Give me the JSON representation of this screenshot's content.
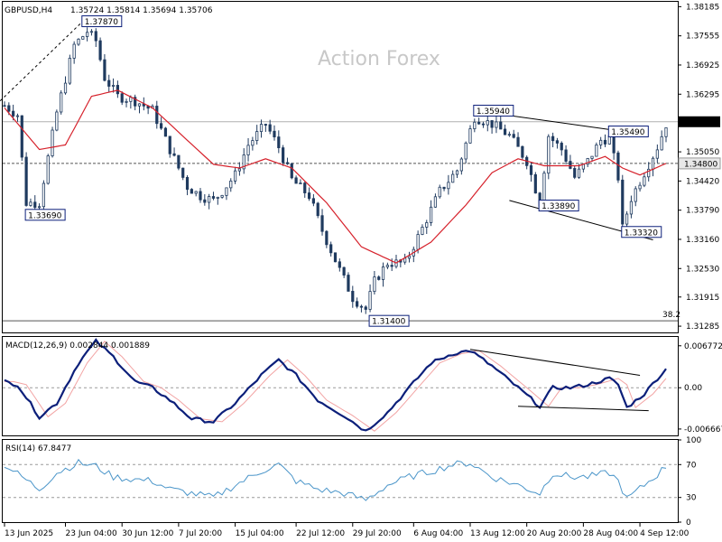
{
  "header": {
    "symbol": "GBPUSD,H4",
    "ohlc": "1.35724 1.35814 1.35694 1.35706"
  },
  "watermark": "Action Forex",
  "colors": {
    "candle": "#1f3a5f",
    "ma": "#d6212b",
    "macd": "#0c1f7a",
    "signal": "#f2a3a3",
    "rsi": "#4a95c9",
    "trend": "#000000",
    "grid": "#9a9a9a",
    "price_box_bg": "#ffffff",
    "price_box_border": "#0c1f7a"
  },
  "chart_data": [
    {
      "type": "candlestick",
      "panel": "price",
      "ylim": [
        1.3115,
        1.3829
      ],
      "y_ticks": [
        "1.38185",
        "1.37555",
        "1.36925",
        "1.36295",
        "1.35665",
        "1.35050",
        "1.34420",
        "1.33790",
        "1.33160",
        "1.32530",
        "1.31915",
        "1.31285"
      ],
      "current_price_label": "1.35706",
      "level_line_label": "1.34800",
      "fib_label": "38.2",
      "annotations": [
        {
          "text": "1.37870",
          "x": 18,
          "y": 1.3787
        },
        {
          "text": "1.33690",
          "x": 5,
          "y": 1.3369
        },
        {
          "text": "1.35940",
          "x": 108,
          "y": 1.3594
        },
        {
          "text": "1.35490",
          "x": 139,
          "y": 1.3549
        },
        {
          "text": "1.33890",
          "x": 123,
          "y": 1.3389
        },
        {
          "text": "1.33320",
          "x": 142,
          "y": 1.3332
        },
        {
          "text": "1.31400",
          "x": 84,
          "y": 1.314
        }
      ],
      "anchors": [
        [
          0,
          1.3605
        ],
        [
          3,
          1.3585
        ],
        [
          5,
          1.3395
        ],
        [
          8,
          1.3395
        ],
        [
          12,
          1.359
        ],
        [
          16,
          1.3735
        ],
        [
          19,
          1.3765
        ],
        [
          21,
          1.3745
        ],
        [
          23,
          1.3665
        ],
        [
          26,
          1.3625
        ],
        [
          30,
          1.3615
        ],
        [
          34,
          1.3595
        ],
        [
          38,
          1.351
        ],
        [
          42,
          1.343
        ],
        [
          45,
          1.341
        ],
        [
          48,
          1.34
        ],
        [
          50,
          1.342
        ],
        [
          53,
          1.3455
        ],
        [
          56,
          1.352
        ],
        [
          60,
          1.3565
        ],
        [
          63,
          1.3515
        ],
        [
          66,
          1.3445
        ],
        [
          70,
          1.341
        ],
        [
          73,
          1.3335
        ],
        [
          77,
          1.325
        ],
        [
          80,
          1.319
        ],
        [
          83,
          1.3165
        ],
        [
          85,
          1.3225
        ],
        [
          88,
          1.3265
        ],
        [
          92,
          1.3265
        ],
        [
          96,
          1.334
        ],
        [
          100,
          1.342
        ],
        [
          104,
          1.3465
        ],
        [
          108,
          1.358
        ],
        [
          112,
          1.3565
        ],
        [
          116,
          1.354
        ],
        [
          120,
          1.3485
        ],
        [
          123,
          1.3395
        ],
        [
          125,
          1.354
        ],
        [
          128,
          1.351
        ],
        [
          131,
          1.345
        ],
        [
          134,
          1.3485
        ],
        [
          137,
          1.353
        ],
        [
          139,
          1.3535
        ],
        [
          141,
          1.345
        ],
        [
          142,
          1.334
        ],
        [
          144,
          1.3405
        ],
        [
          147,
          1.346
        ],
        [
          150,
          1.3515
        ],
        [
          152,
          1.3565
        ]
      ],
      "ma_anchors": [
        [
          0,
          1.36
        ],
        [
          8,
          1.351
        ],
        [
          14,
          1.352
        ],
        [
          20,
          1.3625
        ],
        [
          26,
          1.3638
        ],
        [
          34,
          1.36
        ],
        [
          42,
          1.353
        ],
        [
          48,
          1.3478
        ],
        [
          54,
          1.347
        ],
        [
          60,
          1.349
        ],
        [
          66,
          1.347
        ],
        [
          74,
          1.3395
        ],
        [
          82,
          1.33
        ],
        [
          90,
          1.3265
        ],
        [
          98,
          1.331
        ],
        [
          106,
          1.339
        ],
        [
          112,
          1.346
        ],
        [
          118,
          1.349
        ],
        [
          124,
          1.3475
        ],
        [
          132,
          1.3475
        ],
        [
          138,
          1.3495
        ],
        [
          142,
          1.347
        ],
        [
          146,
          1.3455
        ],
        [
          152,
          1.348
        ]
      ],
      "trendlines": [
        {
          "x1": -1,
          "y1": 1.3615,
          "x2": 18,
          "y2": 1.3787,
          "dashed": true
        },
        {
          "x1": 108,
          "y1": 1.3594,
          "x2": 146,
          "y2": 1.3544,
          "dashed": false
        },
        {
          "x1": 116,
          "y1": 1.34,
          "x2": 149,
          "y2": 1.3315,
          "dashed": false
        }
      ]
    },
    {
      "type": "line",
      "panel": "macd",
      "title": "MACD(12,26,9) 0.002844 0.001889",
      "ylim": [
        -0.0077,
        0.0082
      ],
      "y_ticks": [
        "0.006772",
        "0.00",
        "-0.006667"
      ],
      "anchors": [
        [
          0,
          0.001
        ],
        [
          3,
          0.0005
        ],
        [
          8,
          -0.0047
        ],
        [
          12,
          -0.0025
        ],
        [
          17,
          0.004
        ],
        [
          21,
          0.0075
        ],
        [
          25,
          0.005
        ],
        [
          30,
          0.001
        ],
        [
          34,
          0.0
        ],
        [
          38,
          -0.002
        ],
        [
          43,
          -0.005
        ],
        [
          48,
          -0.0055
        ],
        [
          53,
          -0.0025
        ],
        [
          59,
          0.002
        ],
        [
          63,
          0.0045
        ],
        [
          67,
          0.002
        ],
        [
          72,
          -0.002
        ],
        [
          78,
          -0.0045
        ],
        [
          83,
          -0.007
        ],
        [
          88,
          -0.004
        ],
        [
          93,
          0.0
        ],
        [
          98,
          0.004
        ],
        [
          103,
          0.0055
        ],
        [
          107,
          0.006
        ],
        [
          112,
          0.0035
        ],
        [
          118,
          0.0
        ],
        [
          123,
          -0.003
        ],
        [
          126,
          0.0
        ],
        [
          130,
          0.0
        ],
        [
          134,
          0.0005
        ],
        [
          139,
          0.0015
        ],
        [
          141,
          0.0005
        ],
        [
          143,
          -0.0032
        ],
        [
          147,
          -0.001
        ],
        [
          150,
          0.0015
        ],
        [
          152,
          0.003
        ]
      ],
      "signal_lag": 2,
      "trendlines": [
        {
          "x1": 107,
          "y1": 0.0062,
          "x2": 146,
          "y2": 0.002
        },
        {
          "x1": 118,
          "y1": -0.003,
          "x2": 148,
          "y2": -0.0037
        }
      ]
    },
    {
      "type": "line",
      "panel": "rsi",
      "title": "RSI(14) 67.8477",
      "ylim": [
        0,
        100
      ],
      "y_ticks": [
        "100",
        "70",
        "30",
        "0"
      ],
      "levels": [
        70,
        30
      ],
      "anchors": [
        [
          0,
          70
        ],
        [
          4,
          55
        ],
        [
          8,
          40
        ],
        [
          12,
          60
        ],
        [
          17,
          72
        ],
        [
          21,
          68
        ],
        [
          25,
          55
        ],
        [
          30,
          52
        ],
        [
          34,
          50
        ],
        [
          38,
          40
        ],
        [
          43,
          35
        ],
        [
          48,
          30
        ],
        [
          53,
          45
        ],
        [
          59,
          62
        ],
        [
          63,
          70
        ],
        [
          67,
          50
        ],
        [
          72,
          40
        ],
        [
          78,
          35
        ],
        [
          83,
          27
        ],
        [
          88,
          45
        ],
        [
          93,
          55
        ],
        [
          98,
          62
        ],
        [
          103,
          70
        ],
        [
          107,
          72
        ],
        [
          112,
          55
        ],
        [
          118,
          45
        ],
        [
          123,
          35
        ],
        [
          126,
          60
        ],
        [
          130,
          55
        ],
        [
          134,
          55
        ],
        [
          139,
          60
        ],
        [
          141,
          50
        ],
        [
          143,
          28
        ],
        [
          147,
          45
        ],
        [
          150,
          58
        ],
        [
          152,
          68
        ]
      ]
    },
    {
      "type": "axis",
      "panel": "time",
      "x_labels": [
        {
          "text": "13 Jun 2025",
          "x": 0
        },
        {
          "text": "23 Jun 04:00",
          "x": 14
        },
        {
          "text": "30 Jun 12:00",
          "x": 27
        },
        {
          "text": "7 Jul 20:00",
          "x": 40
        },
        {
          "text": "15 Jul 04:00",
          "x": 53
        },
        {
          "text": "22 Jul 12:00",
          "x": 67
        },
        {
          "text": "29 Jul 20:00",
          "x": 80
        },
        {
          "text": "6 Aug 04:00",
          "x": 94
        },
        {
          "text": "13 Aug 12:00",
          "x": 107
        },
        {
          "text": "20 Aug 20:00",
          "x": 120
        },
        {
          "text": "28 Aug 04:00",
          "x": 133
        },
        {
          "text": "4 Sep 12:00",
          "x": 146
        }
      ]
    }
  ]
}
